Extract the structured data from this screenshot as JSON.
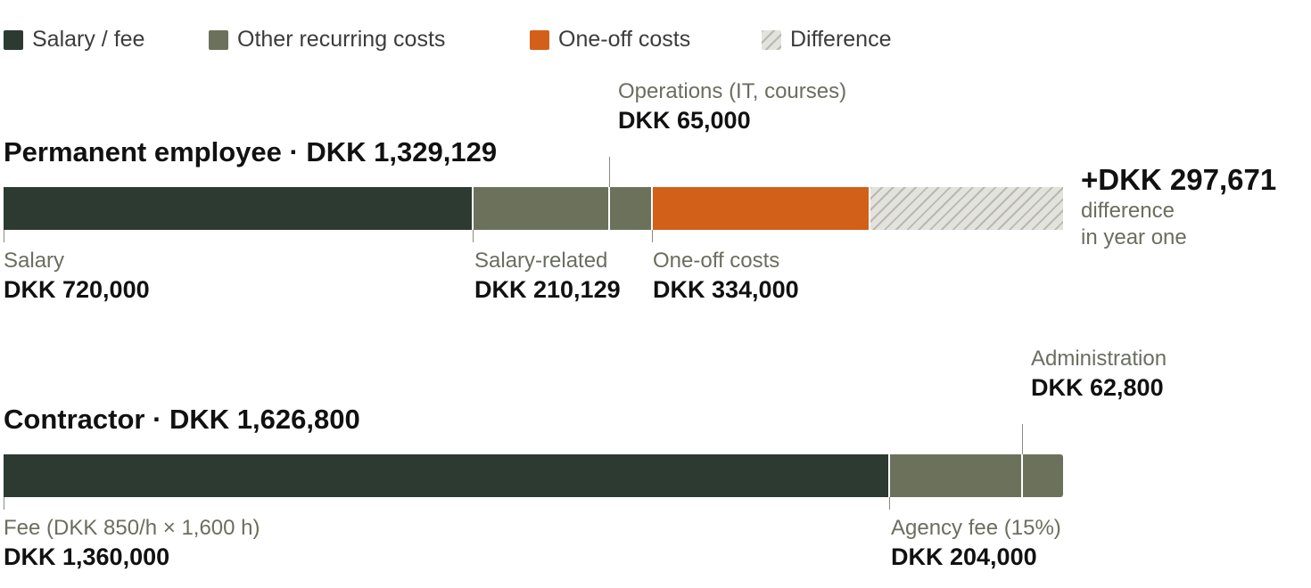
{
  "chart_data": {
    "type": "bar",
    "orientation": "horizontal",
    "stacked": true,
    "colors": {
      "salary_fee": "#2c3a31",
      "other_recurring": "#6c715c",
      "one_off": "#d26019",
      "difference": "#e3e3dd"
    },
    "legend": {
      "placement": "top-left",
      "items": [
        {
          "key": "salary_fee",
          "label": "Salary / fee"
        },
        {
          "key": "other_recurring",
          "label": "Other recurring costs"
        },
        {
          "key": "one_off",
          "label": "One-off costs"
        },
        {
          "key": "difference",
          "label": "Difference"
        }
      ]
    },
    "xlim": [
      0,
      1626800
    ],
    "rows": [
      {
        "title": "Permanent employee · DKK 1,329,129",
        "total": 1329129,
        "segments": [
          {
            "category": "salary_fee",
            "value": 720000
          },
          {
            "category": "other_recurring",
            "value": 210129
          },
          {
            "category": "other_recurring",
            "value": 65000
          },
          {
            "category": "one_off",
            "value": 334000
          },
          {
            "category": "difference",
            "value": 297671
          }
        ],
        "annotations": [
          {
            "label": "Salary",
            "value": "DKK 720,000",
            "segment": 0,
            "position": "below"
          },
          {
            "label": "Salary-related",
            "value": "DKK 210,129",
            "segment": 1,
            "position": "below"
          },
          {
            "label": "Operations (IT, courses)",
            "value": "DKK 65,000",
            "segment": 2,
            "position": "above"
          },
          {
            "label": "One-off costs",
            "value": "DKK 334,000",
            "segment": 3,
            "position": "below"
          }
        ],
        "difference": {
          "value": "+DKK 297,671",
          "label_line1": "difference",
          "label_line2": "in year one"
        }
      },
      {
        "title": "Contractor · DKK 1,626,800",
        "total": 1626800,
        "segments": [
          {
            "category": "salary_fee",
            "value": 1360000
          },
          {
            "category": "other_recurring",
            "value": 204000
          },
          {
            "category": "other_recurring",
            "value": 62800
          }
        ],
        "annotations": [
          {
            "label": "Fee (DKK 850/h × 1,600 h)",
            "value": "DKK 1,360,000",
            "segment": 0,
            "position": "below"
          },
          {
            "label": "Agency fee (15%)",
            "value": "DKK 204,000",
            "segment": 1,
            "position": "below"
          },
          {
            "label": "Administration",
            "value": "DKK 62,800",
            "segment": 2,
            "position": "above"
          }
        ]
      }
    ]
  }
}
